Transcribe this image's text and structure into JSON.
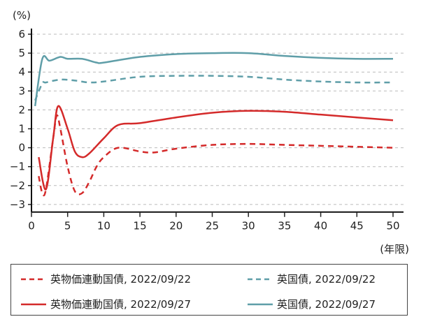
{
  "chart_data": {
    "type": "line",
    "title": "",
    "ylabel": "(%)",
    "xlabel": "(年限)",
    "xlim": [
      0,
      50
    ],
    "ylim": [
      -3.3,
      6.4
    ],
    "xticks": [
      0,
      5,
      10,
      15,
      20,
      25,
      30,
      35,
      40,
      45,
      50
    ],
    "yticks": [
      6,
      5,
      4,
      3,
      2,
      1,
      0,
      -1,
      -2,
      -3
    ],
    "ytick_labels": [
      "6",
      "5",
      "4",
      "3",
      "2",
      "1",
      "0",
      "−1",
      "−2",
      "−3"
    ],
    "grid": "horizontal dashed",
    "legend_position": "bottom",
    "series": [
      {
        "name": "英物価連動国債, 2022/09/22",
        "color": "#d42a2a",
        "style": "dashed",
        "x": [
          1,
          1.5,
          2,
          3,
          3.5,
          4,
          5,
          6,
          7,
          8,
          9,
          10,
          12,
          15,
          17,
          20,
          25,
          30,
          35,
          40,
          45,
          50
        ],
        "y": [
          -1.5,
          -2.4,
          -2.2,
          0.5,
          1.7,
          1.0,
          -1.0,
          -2.3,
          -2.4,
          -1.8,
          -1.0,
          -0.5,
          0,
          -0.2,
          -0.25,
          -0.05,
          0.15,
          0.2,
          0.15,
          0.1,
          0.05,
          0.0
        ]
      },
      {
        "name": "英国債, 2022/09/22",
        "color": "#5f9ea8",
        "style": "dashed",
        "x": [
          0.5,
          1.5,
          2,
          4,
          6,
          8,
          10,
          15,
          20,
          25,
          30,
          35,
          40,
          45,
          50
        ],
        "y": [
          2.5,
          3.4,
          3.45,
          3.6,
          3.55,
          3.45,
          3.5,
          3.75,
          3.8,
          3.8,
          3.75,
          3.6,
          3.5,
          3.45,
          3.45
        ]
      },
      {
        "name": "英物価連動国債, 2022/09/27",
        "color": "#d42a2a",
        "style": "solid",
        "x": [
          1,
          2,
          3,
          3.7,
          5,
          6,
          7,
          8,
          10,
          12,
          15,
          20,
          25,
          30,
          35,
          40,
          45,
          50
        ],
        "y": [
          -0.5,
          -2.2,
          0.5,
          2.2,
          1.0,
          -0.2,
          -0.5,
          -0.3,
          0.5,
          1.2,
          1.3,
          1.6,
          1.85,
          1.95,
          1.9,
          1.75,
          1.6,
          1.45
        ]
      },
      {
        "name": "英国債, 2022/09/27",
        "color": "#5f9ea8",
        "style": "solid",
        "x": [
          0.5,
          1.5,
          2.5,
          4,
          5,
          7,
          9,
          10,
          15,
          20,
          25,
          30,
          35,
          40,
          45,
          50
        ],
        "y": [
          2.2,
          4.7,
          4.6,
          4.8,
          4.7,
          4.7,
          4.5,
          4.5,
          4.8,
          4.95,
          5.0,
          5.0,
          4.85,
          4.75,
          4.7,
          4.7
        ]
      }
    ]
  }
}
